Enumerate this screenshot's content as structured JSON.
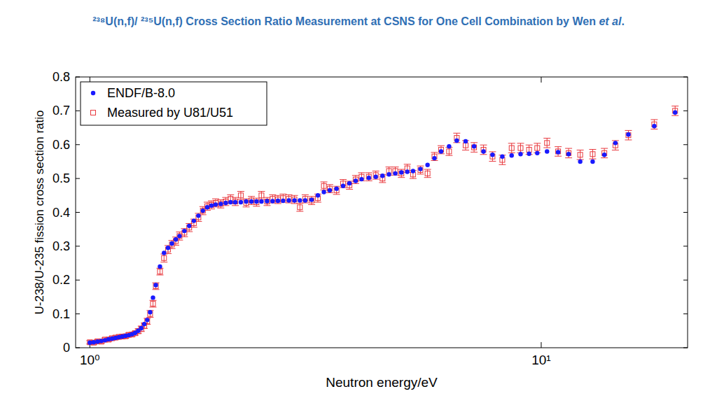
{
  "chart_data": {
    "type": "scatter",
    "title": "²³⁸U(n,f)/ ²³⁵U(n,f) Cross Section Ratio Measurement at CSNS for One Cell Combination by Wen et al.",
    "x_label": "Neutron energy/eV",
    "y_label": "U-238/U-235 fission cross section ratio",
    "log": "x",
    "grid": false,
    "legend": "upper left",
    "xlim": [
      0.93,
      21.1
    ],
    "ylim": [
      0,
      0.8
    ],
    "xticks": [
      {
        "value": 1,
        "label": "10⁰"
      },
      {
        "value": 10,
        "label": "10¹"
      }
    ],
    "yticks": [
      0,
      0.1,
      0.2,
      0.3,
      0.4,
      0.5,
      0.6,
      0.7,
      0.8
    ],
    "x": [
      1.0,
      1.02,
      1.04,
      1.06,
      1.08,
      1.1,
      1.12,
      1.14,
      1.16,
      1.18,
      1.2,
      1.22,
      1.24,
      1.26,
      1.28,
      1.3,
      1.32,
      1.34,
      1.36,
      1.38,
      1.4,
      1.43,
      1.46,
      1.49,
      1.52,
      1.55,
      1.58,
      1.62,
      1.66,
      1.7,
      1.74,
      1.78,
      1.82,
      1.86,
      1.9,
      1.95,
      2.0,
      2.05,
      2.1,
      2.16,
      2.22,
      2.28,
      2.34,
      2.4,
      2.47,
      2.54,
      2.61,
      2.68,
      2.76,
      2.84,
      2.92,
      3.0,
      3.1,
      3.2,
      3.3,
      3.4,
      3.52,
      3.64,
      3.76,
      3.88,
      4.0,
      4.15,
      4.3,
      4.45,
      4.6,
      4.75,
      4.9,
      5.05,
      5.2,
      5.4,
      5.6,
      5.8,
      6.0,
      6.25,
      6.5,
      6.8,
      7.1,
      7.45,
      7.8,
      8.2,
      8.6,
      9.0,
      9.4,
      9.8,
      10.3,
      10.9,
      11.5,
      12.2,
      13.0,
      13.8,
      14.6,
      15.6,
      17.8,
      19.8
    ],
    "series": [
      {
        "name": "ENDF/B-8.0",
        "color": "#1a1aff",
        "marker": "circle",
        "values": [
          0.015,
          0.016,
          0.018,
          0.02,
          0.022,
          0.025,
          0.027,
          0.029,
          0.031,
          0.033,
          0.035,
          0.037,
          0.04,
          0.044,
          0.05,
          0.058,
          0.07,
          0.082,
          0.105,
          0.148,
          0.185,
          0.24,
          0.28,
          0.295,
          0.308,
          0.32,
          0.33,
          0.345,
          0.36,
          0.375,
          0.39,
          0.405,
          0.415,
          0.42,
          0.423,
          0.425,
          0.428,
          0.43,
          0.43,
          0.43,
          0.432,
          0.432,
          0.432,
          0.432,
          0.433,
          0.433,
          0.434,
          0.434,
          0.435,
          0.435,
          0.435,
          0.435,
          0.437,
          0.45,
          0.46,
          0.465,
          0.47,
          0.478,
          0.486,
          0.493,
          0.498,
          0.502,
          0.505,
          0.508,
          0.512,
          0.515,
          0.518,
          0.52,
          0.522,
          0.528,
          0.54,
          0.56,
          0.58,
          0.595,
          0.612,
          0.61,
          0.595,
          0.58,
          0.57,
          0.565,
          0.568,
          0.572,
          0.573,
          0.575,
          0.58,
          0.578,
          0.572,
          0.55,
          0.55,
          0.57,
          0.605,
          0.63,
          0.655,
          0.695
        ]
      },
      {
        "name": "Measured by U81/U51",
        "color": "#e8383d",
        "marker": "square",
        "values": [
          0.016,
          0.015,
          0.019,
          0.018,
          0.024,
          0.024,
          0.028,
          0.03,
          0.032,
          0.033,
          0.034,
          0.038,
          0.039,
          0.043,
          0.049,
          0.056,
          0.065,
          0.078,
          0.1,
          0.13,
          0.182,
          0.225,
          0.265,
          0.29,
          0.305,
          0.315,
          0.33,
          0.34,
          0.355,
          0.368,
          0.385,
          0.405,
          0.418,
          0.422,
          0.428,
          0.425,
          0.432,
          0.44,
          0.432,
          0.45,
          0.428,
          0.435,
          0.43,
          0.45,
          0.432,
          0.44,
          0.438,
          0.442,
          0.44,
          0.438,
          0.415,
          0.44,
          0.435,
          0.442,
          0.478,
          0.47,
          0.465,
          0.485,
          0.48,
          0.497,
          0.505,
          0.505,
          0.51,
          0.5,
          0.522,
          0.522,
          0.515,
          0.53,
          0.512,
          0.525,
          0.515,
          0.565,
          0.585,
          0.58,
          0.62,
          0.598,
          0.592,
          0.585,
          0.565,
          0.555,
          0.59,
          0.59,
          0.585,
          0.59,
          0.605,
          0.58,
          0.575,
          0.57,
          0.572,
          0.575,
          0.598,
          0.628,
          0.66,
          0.7
        ],
        "errors": [
          0.005,
          0.005,
          0.005,
          0.005,
          0.005,
          0.005,
          0.005,
          0.005,
          0.005,
          0.006,
          0.006,
          0.006,
          0.006,
          0.006,
          0.007,
          0.008,
          0.008,
          0.009,
          0.01,
          0.01,
          0.01,
          0.01,
          0.012,
          0.012,
          0.012,
          0.012,
          0.012,
          0.012,
          0.012,
          0.012,
          0.012,
          0.012,
          0.012,
          0.012,
          0.012,
          0.012,
          0.012,
          0.012,
          0.012,
          0.012,
          0.012,
          0.012,
          0.012,
          0.012,
          0.012,
          0.012,
          0.012,
          0.012,
          0.012,
          0.012,
          0.012,
          0.012,
          0.012,
          0.012,
          0.012,
          0.012,
          0.012,
          0.012,
          0.012,
          0.012,
          0.012,
          0.012,
          0.012,
          0.012,
          0.012,
          0.012,
          0.012,
          0.012,
          0.012,
          0.012,
          0.012,
          0.012,
          0.012,
          0.012,
          0.014,
          0.014,
          0.014,
          0.014,
          0.014,
          0.014,
          0.014,
          0.014,
          0.014,
          0.014,
          0.014,
          0.014,
          0.014,
          0.014,
          0.014,
          0.014,
          0.014,
          0.014,
          0.014,
          0.014
        ]
      }
    ]
  }
}
